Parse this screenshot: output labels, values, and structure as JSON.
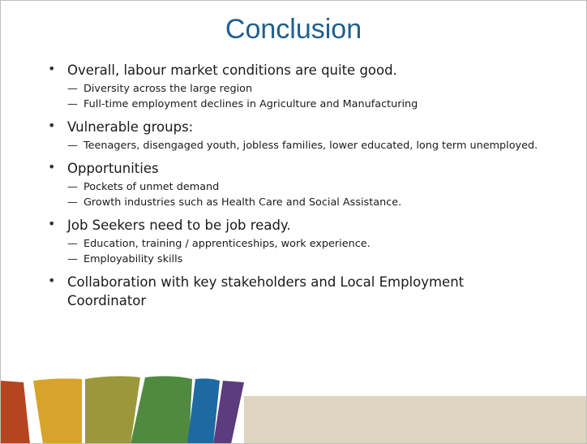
{
  "title": "Conclusion",
  "bullets": [
    {
      "text": "Overall, labour market conditions are quite good.",
      "sub": [
        "Diversity across the large region",
        "Full-time employment declines in Agriculture and Manufacturing"
      ]
    },
    {
      "text": "Vulnerable groups:",
      "sub": [
        "Teenagers, disengaged youth, jobless families, lower educated, long term unemployed."
      ]
    },
    {
      "text": "Opportunities",
      "sub": [
        "Pockets of unmet demand",
        "Growth industries such as Health Care and Social Assistance."
      ]
    },
    {
      "text": "Job Seekers need to be job ready.",
      "sub": [
        "Education, training / apprenticeships, work experience.",
        "Employability skills"
      ]
    },
    {
      "text": "Collaboration with key stakeholders and Local Employment Coordinator",
      "sub": []
    }
  ]
}
